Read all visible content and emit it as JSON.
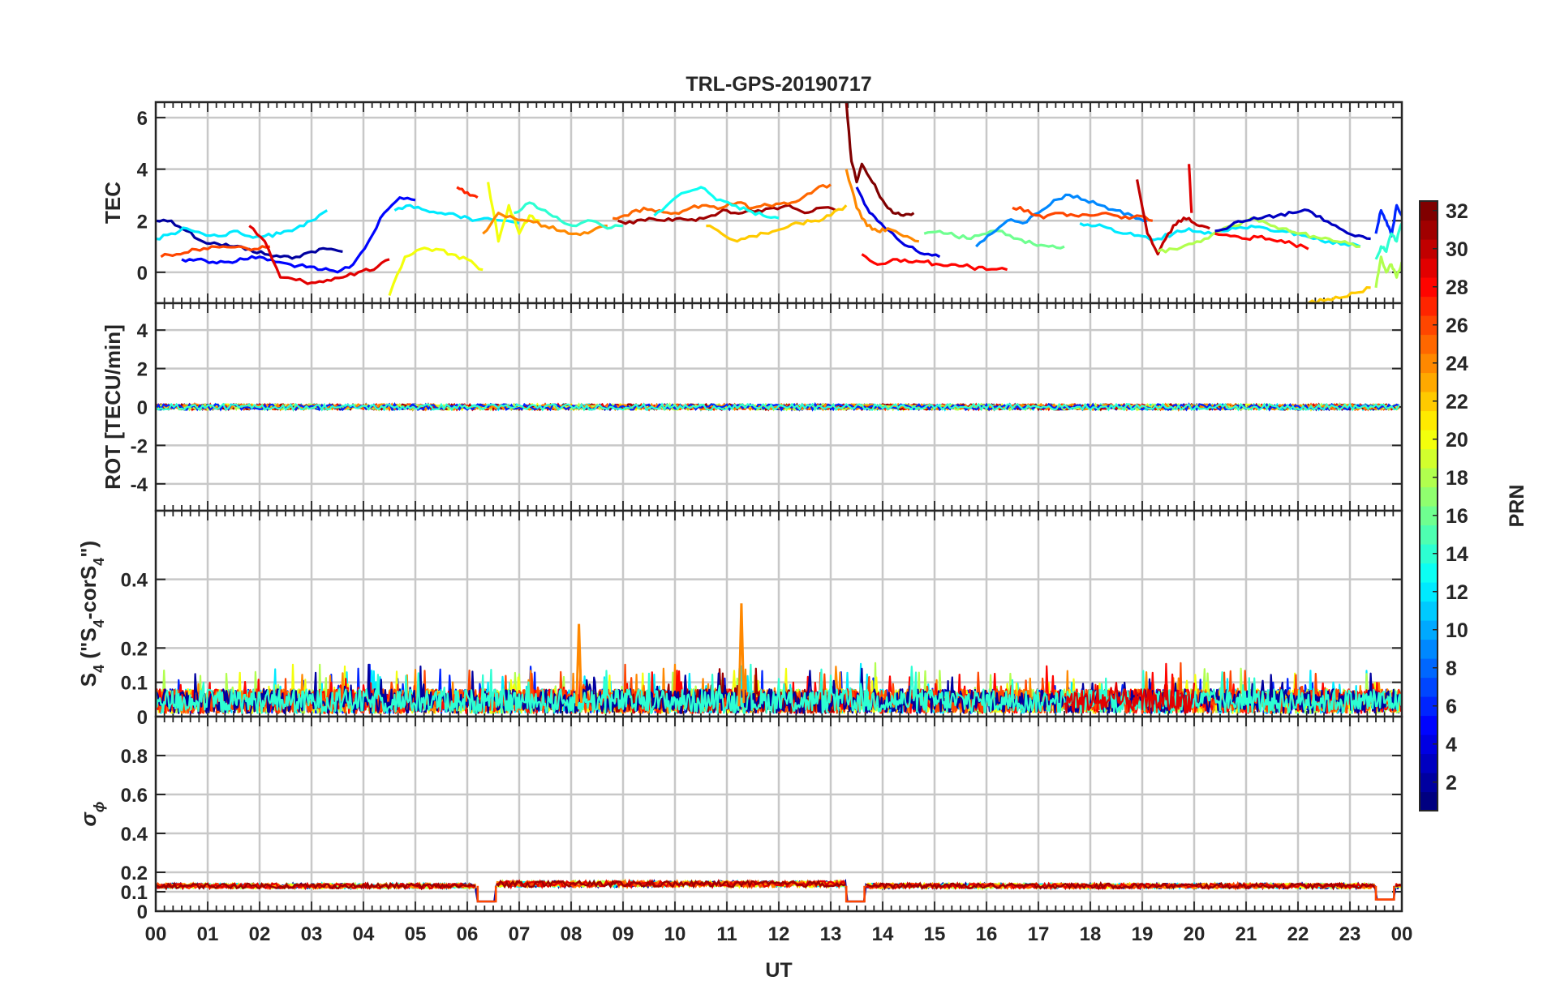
{
  "title": "TRL-GPS-20190717",
  "x_axis": {
    "label": "UT",
    "range": [
      0,
      24
    ],
    "tick_labels": [
      "00",
      "01",
      "02",
      "03",
      "04",
      "05",
      "06",
      "07",
      "08",
      "09",
      "10",
      "11",
      "12",
      "13",
      "14",
      "15",
      "16",
      "17",
      "18",
      "19",
      "20",
      "21",
      "22",
      "23",
      "00"
    ]
  },
  "colorbar": {
    "label": "PRN",
    "range": [
      1,
      32
    ],
    "tick_labels": [
      "2",
      "4",
      "6",
      "8",
      "10",
      "12",
      "14",
      "16",
      "18",
      "20",
      "22",
      "24",
      "26",
      "28",
      "30",
      "32"
    ],
    "colormap": "jet"
  },
  "panels": [
    {
      "id": "tec",
      "ylabel": "TEC",
      "ylim": [
        -1.2,
        6.6
      ],
      "yticks": [
        0,
        2,
        4,
        6
      ],
      "ytick_labels": [
        "0",
        "2",
        "4",
        "6"
      ]
    },
    {
      "id": "rot",
      "ylabel": "ROT [TECU/min]",
      "ylim": [
        -5.4,
        5.4
      ],
      "yticks": [
        -4,
        -2,
        0,
        2,
        4
      ],
      "ytick_labels": [
        "-4",
        "-2",
        "0",
        "2",
        "4"
      ]
    },
    {
      "id": "s4",
      "ylabel_main": "S",
      "ylabel_sub": "4",
      "ylabel_tail_open": " (\"S",
      "ylabel_sub2": "4",
      "ylabel_tail_mid": "-corS",
      "ylabel_sub3": "4",
      "ylabel_tail_close": "\")",
      "ylim": [
        0,
        0.6
      ],
      "yticks": [
        0,
        0.1,
        0.2,
        0.4
      ],
      "ytick_labels": [
        "0",
        "0.1",
        "0.2",
        "0.4"
      ]
    },
    {
      "id": "sigma",
      "ylabel_main": "σ",
      "ylabel_sub": "ϕ",
      "ylim": [
        0,
        1.0
      ],
      "yticks": [
        0,
        0.1,
        0.2,
        0.4,
        0.6,
        0.8
      ],
      "ytick_labels": [
        "0",
        "0.1",
        "0.2",
        "0.4",
        "0.6",
        "0.8"
      ]
    }
  ],
  "chart_data": [
    {
      "type": "line",
      "panel": "tec",
      "title": "TRL-GPS-20190717",
      "ylabel": "TEC",
      "xlabel": "",
      "ylim": [
        -1.2,
        6.6
      ],
      "series": [
        {
          "prn": 2,
          "x": [
            0.0,
            0.3,
            0.6,
            0.9,
            1.2,
            1.5,
            1.8,
            2.1,
            2.4,
            2.7,
            3.0,
            3.3,
            3.6
          ],
          "y": [
            2.0,
            2.0,
            1.6,
            1.2,
            1.1,
            1.0,
            0.9,
            0.7,
            0.6,
            0.6,
            0.8,
            0.9,
            0.8
          ]
        },
        {
          "prn": 5,
          "x": [
            0.5,
            0.8,
            1.1,
            1.4,
            1.7,
            2.0,
            2.3,
            2.6,
            2.9,
            3.2,
            3.5,
            3.8,
            4.1,
            4.4,
            4.7,
            5.0
          ],
          "y": [
            0.5,
            0.5,
            0.4,
            0.4,
            0.5,
            0.6,
            0.4,
            0.3,
            0.2,
            0.1,
            0.0,
            0.3,
            1.2,
            2.3,
            2.9,
            2.8
          ]
        },
        {
          "prn": 12,
          "x": [
            0.0,
            0.3,
            0.6,
            0.9,
            1.2,
            1.5,
            1.8,
            2.1,
            2.4,
            2.7,
            3.0,
            3.3
          ],
          "y": [
            1.3,
            1.5,
            1.7,
            1.5,
            1.4,
            1.6,
            1.4,
            1.4,
            1.5,
            1.7,
            2.0,
            2.4
          ]
        },
        {
          "prn": 26,
          "x": [
            0.1,
            0.4,
            0.7,
            1.0,
            1.3,
            1.6,
            1.9,
            2.2
          ],
          "y": [
            0.6,
            0.7,
            0.9,
            0.9,
            1.0,
            1.0,
            0.9,
            1.0
          ]
        },
        {
          "prn": 29,
          "x": [
            1.8,
            2.1,
            2.4,
            2.7,
            3.0,
            3.3,
            3.6,
            3.9,
            4.2,
            4.5
          ],
          "y": [
            1.8,
            1.2,
            -0.2,
            -0.3,
            -0.4,
            -0.3,
            -0.2,
            0.0,
            0.1,
            0.5
          ]
        },
        {
          "prn": 20,
          "x": [
            4.5,
            4.8,
            5.1,
            5.4,
            5.7,
            6.0,
            6.3
          ],
          "y": [
            -0.9,
            0.6,
            0.9,
            0.9,
            0.7,
            0.5,
            0.1
          ]
        },
        {
          "prn": 12,
          "x": [
            4.6,
            4.9,
            5.2,
            5.5,
            5.8,
            6.1,
            6.4,
            6.7,
            7.0
          ],
          "y": [
            2.4,
            2.6,
            2.4,
            2.3,
            2.2,
            2.0,
            2.1,
            2.0,
            1.9
          ]
        },
        {
          "prn": 27,
          "x": [
            5.8,
            6.0,
            6.2
          ],
          "y": [
            3.3,
            3.1,
            2.9
          ]
        },
        {
          "prn": 20,
          "x": [
            6.4,
            6.6,
            6.8,
            7.0,
            7.2,
            7.4
          ],
          "y": [
            3.5,
            1.2,
            2.6,
            1.5,
            2.2,
            2.0
          ]
        },
        {
          "prn": 24,
          "x": [
            6.3,
            6.6,
            6.9,
            7.2,
            7.5,
            7.8,
            8.1,
            8.4,
            8.7
          ],
          "y": [
            1.5,
            2.3,
            2.1,
            2.0,
            1.8,
            1.6,
            1.5,
            1.6,
            1.8
          ]
        },
        {
          "prn": 14,
          "x": [
            6.9,
            7.2,
            7.5,
            7.8,
            8.1,
            8.4,
            8.7,
            9.0
          ],
          "y": [
            2.3,
            2.7,
            2.4,
            2.0,
            1.8,
            2.0,
            1.7,
            1.8
          ]
        },
        {
          "prn": 31,
          "x": [
            8.9,
            9.2,
            9.5,
            9.8,
            10.1,
            10.4,
            10.7,
            11.0,
            11.3,
            11.6,
            11.9,
            12.2,
            12.5,
            12.8,
            13.1
          ],
          "y": [
            2.0,
            1.9,
            2.1,
            2.0,
            2.1,
            2.0,
            2.2,
            2.4,
            2.3,
            2.4,
            2.5,
            2.6,
            2.3,
            2.5,
            2.4
          ]
        },
        {
          "prn": 25,
          "x": [
            8.8,
            9.1,
            9.4,
            9.7,
            10.0,
            10.3,
            10.6,
            10.9,
            11.2,
            11.5,
            11.8,
            12.1,
            12.4,
            12.7,
            13.0
          ],
          "y": [
            2.1,
            2.2,
            2.5,
            2.4,
            2.3,
            2.5,
            2.6,
            2.5,
            2.7,
            2.5,
            2.6,
            2.7,
            2.8,
            3.2,
            3.4
          ]
        },
        {
          "prn": 13,
          "x": [
            9.6,
            9.9,
            10.2,
            10.5,
            10.8,
            11.1,
            11.4,
            11.7,
            12.0
          ],
          "y": [
            2.2,
            2.7,
            3.1,
            3.3,
            2.8,
            2.6,
            2.4,
            2.2,
            2.1
          ]
        },
        {
          "prn": 22,
          "x": [
            10.6,
            10.9,
            11.2,
            11.5,
            11.8,
            12.1,
            12.4,
            12.7,
            13.0,
            13.3
          ],
          "y": [
            1.8,
            1.5,
            1.2,
            1.4,
            1.5,
            1.7,
            1.9,
            2.0,
            2.2,
            2.6
          ]
        },
        {
          "prn": 32,
          "x": [
            13.3,
            13.4,
            13.5,
            13.6,
            13.8,
            14.0,
            14.2,
            14.4,
            14.6
          ],
          "y": [
            6.6,
            4.3,
            3.5,
            4.2,
            3.5,
            2.8,
            2.3,
            2.2,
            2.3
          ]
        },
        {
          "prn": 4,
          "x": [
            13.5,
            13.7,
            13.9,
            14.2,
            14.5,
            14.8,
            15.1
          ],
          "y": [
            3.3,
            2.5,
            2.0,
            1.5,
            1.0,
            0.7,
            0.6
          ]
        },
        {
          "prn": 24,
          "x": [
            13.3,
            13.5,
            13.7,
            13.9,
            14.1,
            14.4,
            14.7
          ],
          "y": [
            4.0,
            2.5,
            1.8,
            1.6,
            1.7,
            1.4,
            1.2
          ]
        },
        {
          "prn": 28,
          "x": [
            13.6,
            13.9,
            14.2,
            14.5,
            14.8,
            15.1,
            15.4,
            15.7,
            16.0,
            16.4
          ],
          "y": [
            0.7,
            0.3,
            0.5,
            0.4,
            0.4,
            0.3,
            0.3,
            0.2,
            0.1,
            0.1
          ]
        },
        {
          "prn": 16,
          "x": [
            14.8,
            15.1,
            15.4,
            15.7,
            16.0,
            16.3,
            16.6,
            16.9,
            17.2,
            17.5
          ],
          "y": [
            1.5,
            1.6,
            1.4,
            1.3,
            1.5,
            1.6,
            1.3,
            1.1,
            1.0,
            1.0
          ]
        },
        {
          "prn": 9,
          "x": [
            15.8,
            16.1,
            16.4,
            16.7,
            17.0,
            17.3,
            17.6,
            17.9,
            18.2,
            18.5,
            18.8,
            19.1
          ],
          "y": [
            1.0,
            1.5,
            2.0,
            1.9,
            2.3,
            2.8,
            3.0,
            2.8,
            2.6,
            2.4,
            2.2,
            2.0
          ]
        },
        {
          "prn": 26,
          "x": [
            16.5,
            16.8,
            17.1,
            17.4,
            17.7,
            18.0,
            18.3,
            18.6,
            18.9,
            19.2
          ],
          "y": [
            2.5,
            2.4,
            2.1,
            2.3,
            2.2,
            2.2,
            2.3,
            2.1,
            2.2,
            2.0
          ]
        },
        {
          "prn": 12,
          "x": [
            17.8,
            18.1,
            18.4,
            18.7,
            19.0,
            19.3,
            19.6,
            19.9,
            20.2,
            20.5,
            20.8,
            21.1,
            21.4,
            21.7,
            22.0,
            22.3,
            22.6,
            22.9,
            23.2
          ],
          "y": [
            1.9,
            1.8,
            1.7,
            1.5,
            1.4,
            1.3,
            1.5,
            1.7,
            1.5,
            1.6,
            1.7,
            1.8,
            1.7,
            1.6,
            1.5,
            1.3,
            1.2,
            1.1,
            1.0
          ]
        },
        {
          "prn": 30,
          "x": [
            18.9,
            19.1,
            19.3,
            19.5,
            19.7,
            19.9,
            20.1,
            20.3
          ],
          "y": [
            3.6,
            1.5,
            0.7,
            1.5,
            2.0,
            2.1,
            1.8,
            1.7
          ]
        },
        {
          "prn": 29,
          "x": [
            19.9,
            19.95
          ],
          "y": [
            4.2,
            2.3
          ]
        },
        {
          "prn": 18,
          "x": [
            19.3,
            19.6,
            19.9,
            20.2,
            20.5,
            20.8,
            21.1,
            21.4,
            21.7,
            22.0,
            22.3,
            22.6,
            22.9,
            23.2
          ],
          "y": [
            0.8,
            0.9,
            1.1,
            1.3,
            1.6,
            1.8,
            2.1,
            1.9,
            1.7,
            1.5,
            1.4,
            1.3,
            1.2,
            1.0
          ]
        },
        {
          "prn": 3,
          "x": [
            20.4,
            20.7,
            21.0,
            21.3,
            21.6,
            21.9,
            22.2,
            22.5,
            22.8,
            23.1,
            23.4
          ],
          "y": [
            1.6,
            1.8,
            2.0,
            2.1,
            2.2,
            2.3,
            2.4,
            2.0,
            1.7,
            1.4,
            1.3
          ]
        },
        {
          "prn": 28,
          "x": [
            20.4,
            20.7,
            21.0,
            21.3,
            21.6,
            21.9,
            22.2
          ],
          "y": [
            1.5,
            1.4,
            1.3,
            1.4,
            1.2,
            1.1,
            0.9
          ]
        },
        {
          "prn": 22,
          "x": [
            22.2,
            22.5,
            22.8,
            23.1,
            23.4
          ],
          "y": [
            -1.2,
            -1.1,
            -1.0,
            -0.8,
            -0.6
          ]
        },
        {
          "prn": 6,
          "x": [
            23.5,
            23.6,
            23.7,
            23.8,
            23.9,
            24.0
          ],
          "y": [
            1.5,
            2.4,
            2.0,
            1.4,
            2.6,
            2.2
          ]
        },
        {
          "prn": 14,
          "x": [
            23.5,
            23.6,
            23.7,
            23.8,
            23.9,
            24.0
          ],
          "y": [
            0.5,
            1.0,
            0.8,
            1.5,
            1.2,
            1.9
          ]
        },
        {
          "prn": 18,
          "x": [
            23.5,
            23.6,
            23.7,
            23.8,
            23.9,
            24.0
          ],
          "y": [
            -0.6,
            0.6,
            0.0,
            0.3,
            -0.2,
            0.4
          ]
        }
      ]
    },
    {
      "type": "line",
      "panel": "rot",
      "ylabel": "ROT [TECU/min]",
      "ylim": [
        -5.4,
        5.4
      ],
      "description_values": "all series near 0, amplitude about ±0.15",
      "baseline": 0,
      "amplitude": 0.15
    },
    {
      "type": "line",
      "panel": "s4",
      "ylim": [
        0,
        0.6
      ],
      "baseline_range": [
        0.0,
        0.14
      ],
      "peaks": [
        {
          "x": 8.15,
          "y": 0.27,
          "prn": 24
        },
        {
          "x": 11.28,
          "y": 0.33,
          "prn": 24
        }
      ]
    },
    {
      "type": "line",
      "panel": "sigma",
      "ylim": [
        0,
        1.0
      ],
      "baseline": 0.13,
      "low_segments": [
        {
          "x": [
            6.2,
            6.55
          ],
          "y": 0.05
        },
        {
          "x": [
            13.3,
            13.65
          ],
          "y": 0.05
        },
        {
          "x": [
            23.5,
            23.85
          ],
          "y": 0.06
        }
      ]
    }
  ]
}
